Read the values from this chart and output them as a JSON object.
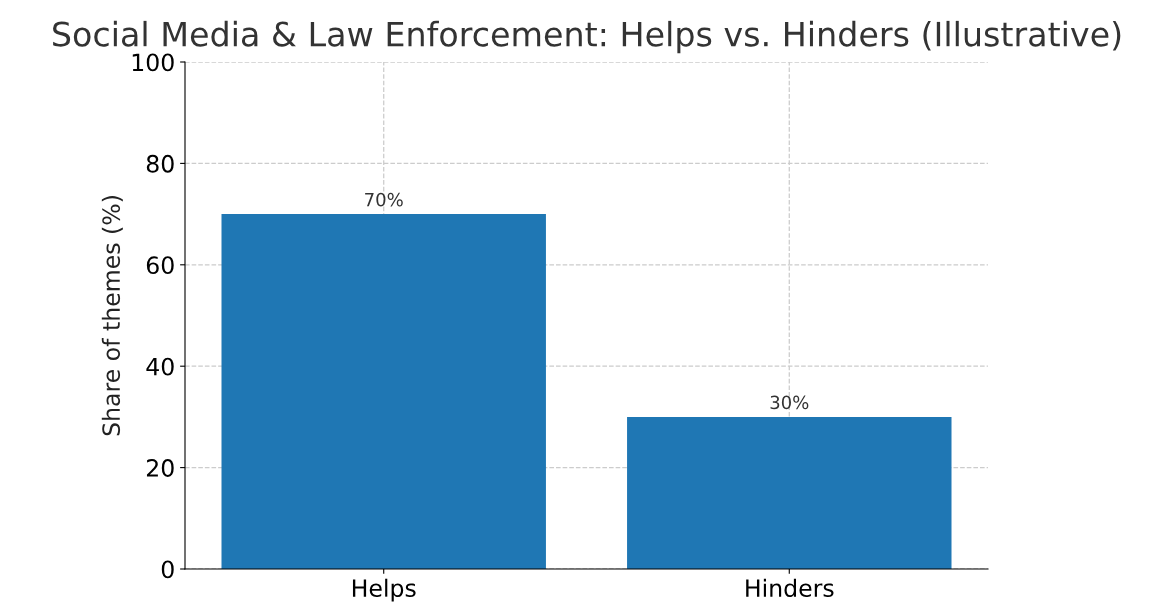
{
  "chart_data": {
    "type": "bar",
    "title": "Social Media & Law Enforcement: Helps vs. Hinders (Illustrative)",
    "ylabel": "Share of themes (%)",
    "categories": [
      "Helps",
      "Hinders"
    ],
    "values": [
      70,
      30
    ],
    "color": "#1f77b4",
    "value_labels": [
      "70%",
      "30%"
    ],
    "ylim": [
      0,
      100
    ],
    "yticks": [
      0,
      20,
      40,
      60,
      80,
      100
    ],
    "grid": true,
    "line_style": "dashed"
  }
}
